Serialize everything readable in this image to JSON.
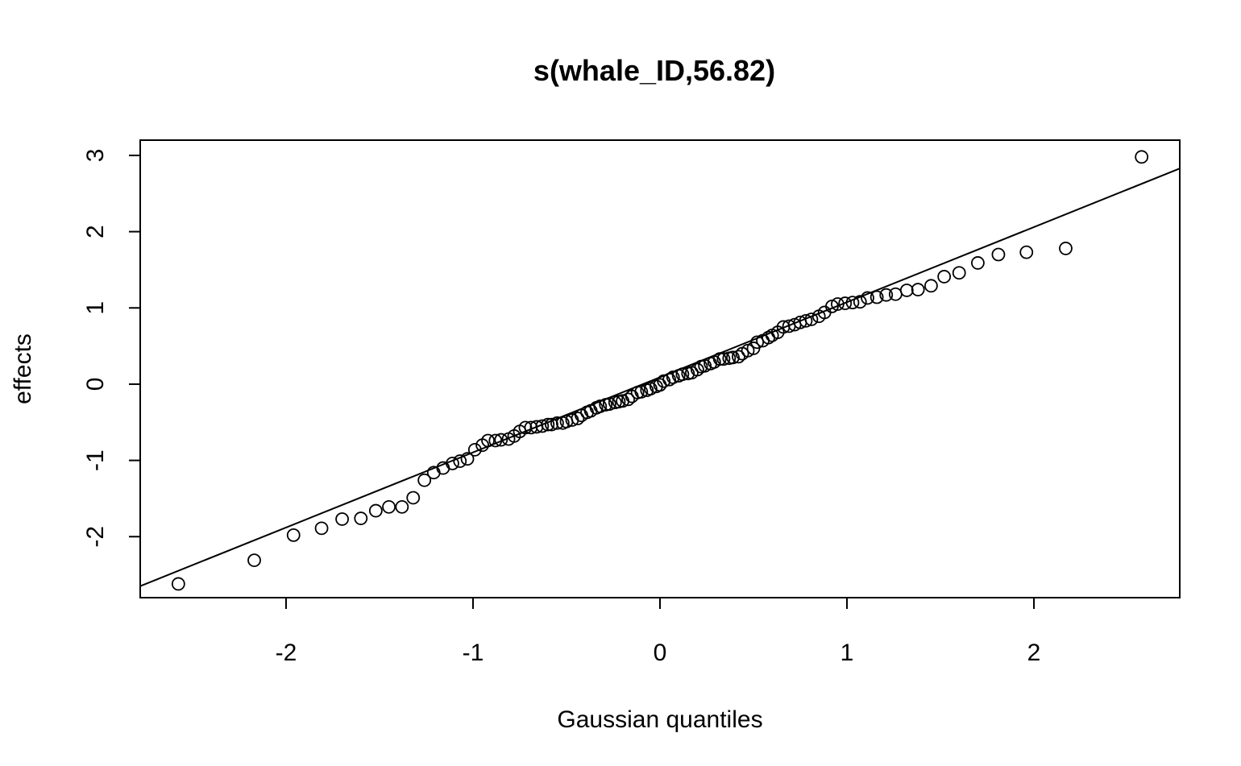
{
  "chart_data": {
    "type": "scatter",
    "title": "s(whale_ID,56.82)",
    "xlabel": "Gaussian quantiles",
    "ylabel": "effects",
    "xlim": [
      -2.78,
      2.78
    ],
    "ylim": [
      -2.8,
      3.2
    ],
    "xticks": [
      "-2",
      "-1",
      "0",
      "1",
      "2"
    ],
    "yticks": [
      "-2",
      "-1",
      "0",
      "1",
      "2",
      "3"
    ],
    "grid": false,
    "legend": "none",
    "marker": "open-circle",
    "reference_line": {
      "slope": 0.985,
      "intercept": 0.09
    },
    "points": [
      [
        -2.576,
        -2.62
      ],
      [
        -2.17,
        -2.31
      ],
      [
        -1.96,
        -1.98
      ],
      [
        -1.81,
        -1.89
      ],
      [
        -1.7,
        -1.77
      ],
      [
        -1.6,
        -1.76
      ],
      [
        -1.52,
        -1.66
      ],
      [
        -1.45,
        -1.61
      ],
      [
        -1.38,
        -1.61
      ],
      [
        -1.32,
        -1.49
      ],
      [
        -1.26,
        -1.26
      ],
      [
        -1.21,
        -1.16
      ],
      [
        -1.16,
        -1.1
      ],
      [
        -1.11,
        -1.04
      ],
      [
        -1.07,
        -1.01
      ],
      [
        -1.03,
        -0.98
      ],
      [
        -0.99,
        -0.86
      ],
      [
        -0.95,
        -0.8
      ],
      [
        -0.92,
        -0.74
      ],
      [
        -0.88,
        -0.74
      ],
      [
        -0.85,
        -0.73
      ],
      [
        -0.81,
        -0.72
      ],
      [
        -0.78,
        -0.68
      ],
      [
        -0.75,
        -0.62
      ],
      [
        -0.72,
        -0.57
      ],
      [
        -0.69,
        -0.57
      ],
      [
        -0.66,
        -0.56
      ],
      [
        -0.63,
        -0.55
      ],
      [
        -0.6,
        -0.53
      ],
      [
        -0.58,
        -0.53
      ],
      [
        -0.55,
        -0.51
      ],
      [
        -0.52,
        -0.51
      ],
      [
        -0.5,
        -0.49
      ],
      [
        -0.47,
        -0.47
      ],
      [
        -0.44,
        -0.45
      ],
      [
        -0.42,
        -0.41
      ],
      [
        -0.39,
        -0.37
      ],
      [
        -0.37,
        -0.35
      ],
      [
        -0.34,
        -0.31
      ],
      [
        -0.32,
        -0.29
      ],
      [
        -0.29,
        -0.27
      ],
      [
        -0.27,
        -0.26
      ],
      [
        -0.24,
        -0.24
      ],
      [
        -0.22,
        -0.23
      ],
      [
        -0.2,
        -0.22
      ],
      [
        -0.17,
        -0.2
      ],
      [
        -0.15,
        -0.16
      ],
      [
        -0.12,
        -0.11
      ],
      [
        -0.1,
        -0.1
      ],
      [
        -0.07,
        -0.08
      ],
      [
        -0.05,
        -0.06
      ],
      [
        -0.02,
        -0.03
      ],
      [
        0.0,
        -0.01
      ],
      [
        0.02,
        0.04
      ],
      [
        0.05,
        0.06
      ],
      [
        0.07,
        0.09
      ],
      [
        0.1,
        0.11
      ],
      [
        0.12,
        0.13
      ],
      [
        0.15,
        0.14
      ],
      [
        0.17,
        0.15
      ],
      [
        0.2,
        0.19
      ],
      [
        0.22,
        0.23
      ],
      [
        0.24,
        0.24
      ],
      [
        0.27,
        0.27
      ],
      [
        0.29,
        0.29
      ],
      [
        0.32,
        0.33
      ],
      [
        0.34,
        0.33
      ],
      [
        0.37,
        0.34
      ],
      [
        0.39,
        0.35
      ],
      [
        0.42,
        0.36
      ],
      [
        0.44,
        0.4
      ],
      [
        0.47,
        0.44
      ],
      [
        0.5,
        0.47
      ],
      [
        0.52,
        0.55
      ],
      [
        0.55,
        0.57
      ],
      [
        0.58,
        0.61
      ],
      [
        0.6,
        0.64
      ],
      [
        0.63,
        0.68
      ],
      [
        0.66,
        0.75
      ],
      [
        0.69,
        0.76
      ],
      [
        0.72,
        0.78
      ],
      [
        0.75,
        0.81
      ],
      [
        0.78,
        0.83
      ],
      [
        0.81,
        0.85
      ],
      [
        0.85,
        0.89
      ],
      [
        0.88,
        0.94
      ],
      [
        0.92,
        1.02
      ],
      [
        0.95,
        1.05
      ],
      [
        0.99,
        1.06
      ],
      [
        1.03,
        1.07
      ],
      [
        1.07,
        1.08
      ],
      [
        1.11,
        1.13
      ],
      [
        1.16,
        1.14
      ],
      [
        1.21,
        1.17
      ],
      [
        1.26,
        1.18
      ],
      [
        1.32,
        1.23
      ],
      [
        1.38,
        1.24
      ],
      [
        1.45,
        1.29
      ],
      [
        1.52,
        1.41
      ],
      [
        1.6,
        1.46
      ],
      [
        1.7,
        1.59
      ],
      [
        1.81,
        1.7
      ],
      [
        1.96,
        1.73
      ],
      [
        2.17,
        1.78
      ],
      [
        2.576,
        2.98
      ]
    ]
  }
}
